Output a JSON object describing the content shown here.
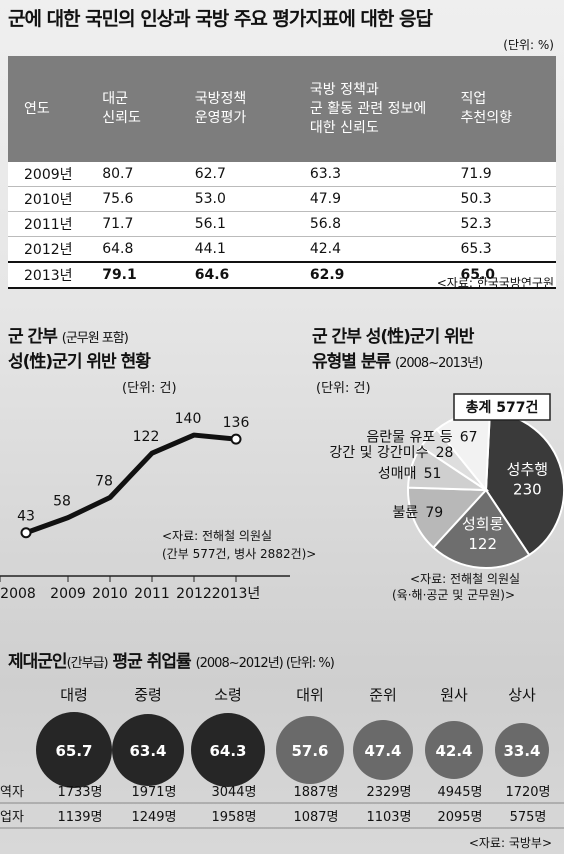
{
  "title": "군에 대한 국민의 인상과 국방 주요 평가지표에 대한 응답",
  "table": {
    "unit": "(단위: %)",
    "headers": [
      [
        "연도"
      ],
      [
        "대군",
        "신뢰도"
      ],
      [
        "국방정책",
        "운영평가"
      ],
      [
        "국방 정책과",
        "군 활동 관련 정보에",
        "대한 신뢰도"
      ],
      [
        "직업",
        "추천의향"
      ]
    ],
    "rows": [
      [
        "2009년",
        "80.7",
        "62.7",
        "63.3",
        "71.9"
      ],
      [
        "2010년",
        "75.6",
        "53.0",
        "47.9",
        "50.3"
      ],
      [
        "2011년",
        "71.7",
        "56.1",
        "56.8",
        "52.3"
      ],
      [
        "2012년",
        "64.8",
        "44.1",
        "42.4",
        "65.3"
      ],
      [
        "2013년",
        "79.1",
        "64.6",
        "62.9",
        "65.0"
      ]
    ],
    "source": "<자료: 한국국방연구원"
  },
  "line_section": {
    "title_line1": "군 간부",
    "title_line1_note": "(군무원 포함)",
    "title_line2": "성(性)군기 위반 현황",
    "unit": "(단위: 건)",
    "source_line1": "<자료: 전해철 의원실",
    "source_line2": "(간부 577건, 병사 2882건)>"
  },
  "pie_section": {
    "title_line1": "군 간부 성(性)군기 위반",
    "title_line2": "유형별 분류",
    "period": "(2008~2013년)",
    "unit": "(단위: 건)",
    "total_label": "총계 577건",
    "source_line1": "<자료: 전해철 의원실",
    "source_line2": "(육·해·공군 및 군무원)>"
  },
  "employment": {
    "title": "제대군인",
    "title_note": "(간부급)",
    "title_rest": "평균 취업률",
    "period_unit": "(2008~2012년) (단위: %)",
    "row1_label": "역자",
    "row2_label": "업자",
    "source": "<자료: 국방부>"
  },
  "chart_data": [
    {
      "type": "line",
      "x": [
        "2008",
        "2009",
        "2010",
        "2011",
        "2012",
        "2013년"
      ],
      "values": [
        43,
        58,
        78,
        122,
        140,
        136
      ]
    },
    {
      "type": "pie",
      "total": 577,
      "slices": [
        {
          "label": "성추행",
          "value": 230,
          "color": "#3a3a3a"
        },
        {
          "label": "성희롱",
          "value": 122,
          "color": "#6e6e6e"
        },
        {
          "label": "불륜",
          "value": 79,
          "color": "#b8b8b8"
        },
        {
          "label": "성매매",
          "value": 51,
          "color": "#cfcfcf"
        },
        {
          "label": "강간 및 강간미수",
          "value": 28,
          "color": "#dedede"
        },
        {
          "label": "음란물 유포 등",
          "value": 67,
          "color": "#f2f2f2"
        }
      ]
    },
    {
      "type": "bubble",
      "categories": [
        "대령",
        "중령",
        "소령",
        "대위",
        "준위",
        "원사",
        "상사"
      ],
      "values": [
        65.7,
        63.4,
        64.3,
        57.6,
        47.4,
        42.4,
        33.4
      ],
      "colors": [
        "#262626",
        "#262626",
        "#262626",
        "#6a6a6a",
        "#6a6a6a",
        "#6a6a6a",
        "#6a6a6a"
      ],
      "row1": [
        "1733명",
        "1971명",
        "3044명",
        "1887명",
        "2329명",
        "4945명",
        "1720명"
      ],
      "row2": [
        "1139명",
        "1249명",
        "1958명",
        "1087명",
        "1103명",
        "2095명",
        "575명"
      ]
    }
  ]
}
